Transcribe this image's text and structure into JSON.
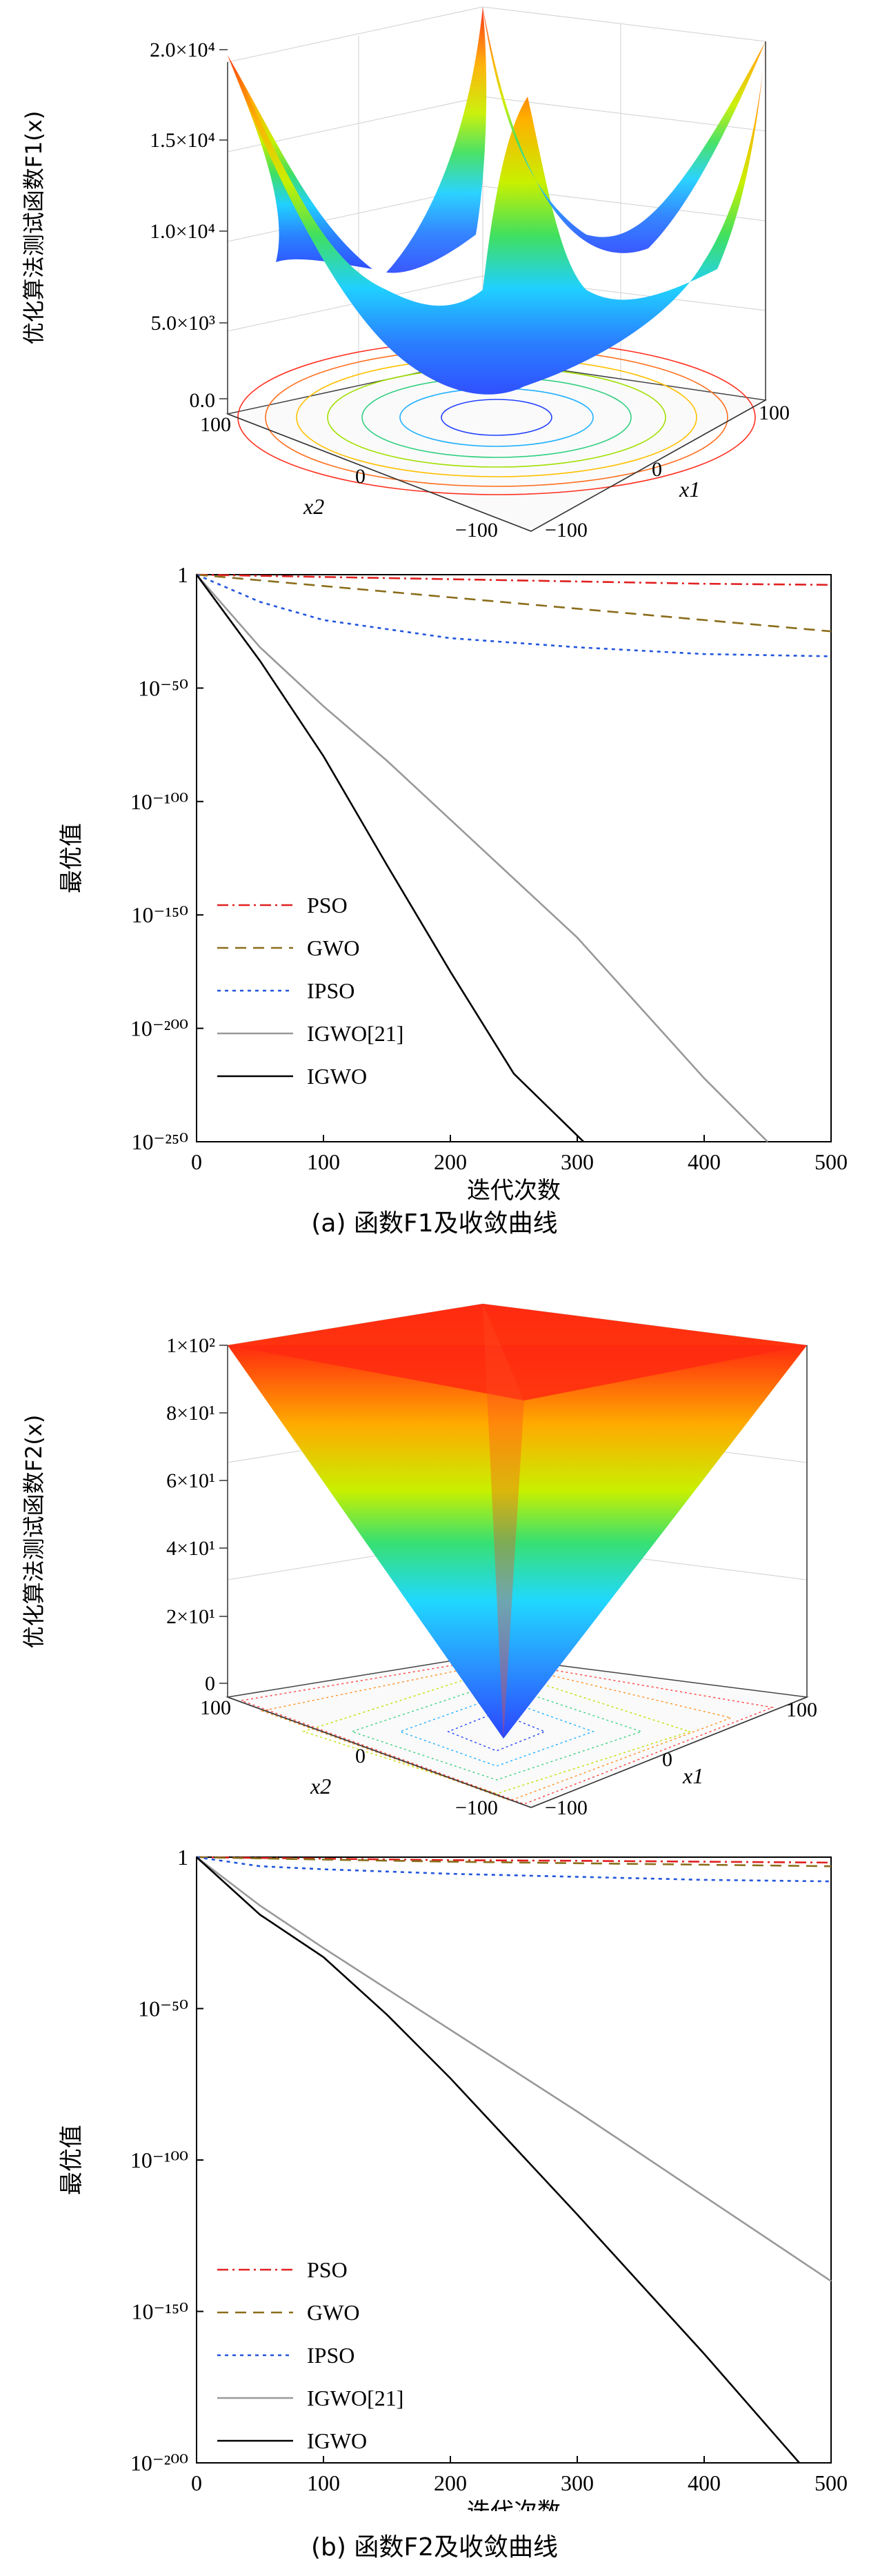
{
  "panels": [
    {
      "caption": "(a)  函数F1及收敛曲线",
      "surface": {
        "zlabel": "优化算法测试函数F1(x)",
        "zticks": [
          "0.0",
          "5.0×10³",
          "1.0×10⁴",
          "1.5×10⁴",
          "2.0×10⁴"
        ],
        "x1label": "x1",
        "x2label": "x2",
        "x1ticks": [
          "100",
          "0",
          "−100"
        ],
        "x2ticks": [
          "100",
          "0",
          "−100"
        ]
      }
    },
    {
      "caption": "(b) 函数F2及收敛曲线",
      "surface": {
        "zlabel": "优化算法测试函数F2(x)",
        "zticks": [
          "0",
          "2×10¹",
          "4×10¹",
          "6×10¹",
          "8×10¹",
          "1×10²"
        ],
        "x1label": "x1",
        "x2label": "x2",
        "x1ticks": [
          "100",
          "0",
          "−100"
        ],
        "x2ticks": [
          "100",
          "0",
          "−100"
        ]
      }
    }
  ],
  "chart_data": [
    {
      "type": "surface",
      "function": "F1",
      "zlabel": "优化算法测试函数F1(x)",
      "xlabel": "x1",
      "ylabel": "x2",
      "xlim": [
        -100,
        100
      ],
      "ylim": [
        -100,
        100
      ],
      "zlim": [
        0,
        20000
      ],
      "zticks": [
        0,
        5000,
        10000,
        15000,
        20000
      ],
      "contours_on_base": true,
      "colormap": [
        "#3050ff",
        "#20d0ff",
        "#40e060",
        "#c8f000",
        "#ffb000",
        "#ff2a10"
      ]
    },
    {
      "type": "line",
      "xlabel": "迭代次数",
      "ylabel": "最优值",
      "yscale": "log",
      "xlim": [
        0,
        500
      ],
      "ylim_exp": [
        -250,
        0
      ],
      "xticks": [
        0,
        100,
        200,
        300,
        400,
        500
      ],
      "ytick_labels": [
        "1",
        "10⁻⁵⁰",
        "10⁻¹⁰⁰",
        "10⁻¹⁵⁰",
        "10⁻²⁰⁰",
        "10⁻²⁵⁰"
      ],
      "legend_position": "bottom-left",
      "series": [
        {
          "name": "PSO",
          "color": "#e02020",
          "dash": "dashdot",
          "x": [
            0,
            100,
            200,
            300,
            400,
            500
          ],
          "log10_y": [
            0,
            -1,
            -2,
            -3,
            -4,
            -4.5
          ]
        },
        {
          "name": "GWO",
          "color": "#8a6d1a",
          "dash": "dashed",
          "x": [
            0,
            100,
            200,
            300,
            400,
            500
          ],
          "log10_y": [
            0,
            -5,
            -10,
            -15,
            -20,
            -25
          ]
        },
        {
          "name": "IPSO",
          "color": "#2255dd",
          "dash": "dotted",
          "x": [
            0,
            50,
            100,
            200,
            300,
            400,
            500
          ],
          "log10_y": [
            0,
            -12,
            -20,
            -28,
            -32,
            -35,
            -36
          ]
        },
        {
          "name": "IGWO[21]",
          "color": "#999999",
          "dash": "solid",
          "x": [
            0,
            50,
            100,
            150,
            200,
            300,
            400,
            450
          ],
          "log10_y": [
            0,
            -32,
            -58,
            -82,
            -108,
            -160,
            -222,
            -250
          ]
        },
        {
          "name": "IGWO",
          "color": "#000000",
          "dash": "solid",
          "x": [
            0,
            50,
            100,
            150,
            200,
            250,
            305
          ],
          "log10_y": [
            0,
            -38,
            -80,
            -128,
            -175,
            -220,
            -250
          ]
        }
      ]
    },
    {
      "type": "surface",
      "function": "F2",
      "zlabel": "优化算法测试函数F2(x)",
      "xlabel": "x1",
      "ylabel": "x2",
      "xlim": [
        -100,
        100
      ],
      "ylim": [
        -100,
        100
      ],
      "zlim": [
        0,
        100
      ],
      "zticks": [
        0,
        20,
        40,
        60,
        80,
        100
      ],
      "contours_on_base": true,
      "colormap": [
        "#3050ff",
        "#20d0ff",
        "#40e060",
        "#c8f000",
        "#ffb000",
        "#ff2a10"
      ]
    },
    {
      "type": "line",
      "xlabel": "迭代次数",
      "ylabel": "最优值",
      "yscale": "log",
      "xlim": [
        0,
        500
      ],
      "ylim_exp": [
        -200,
        0
      ],
      "xticks": [
        0,
        100,
        200,
        300,
        400,
        500
      ],
      "ytick_labels": [
        "1",
        "10⁻⁵⁰",
        "10⁻¹⁰⁰",
        "10⁻¹⁵⁰",
        "10⁻²⁰⁰"
      ],
      "legend_position": "bottom-left",
      "series": [
        {
          "name": "PSO",
          "color": "#e02020",
          "dash": "dashdot",
          "x": [
            0,
            100,
            200,
            300,
            400,
            500
          ],
          "log10_y": [
            0,
            -0.5,
            -1,
            -1.2,
            -1.5,
            -1.8
          ]
        },
        {
          "name": "GWO",
          "color": "#8a6d1a",
          "dash": "dashed",
          "x": [
            0,
            100,
            200,
            300,
            400,
            500
          ],
          "log10_y": [
            0,
            -0.8,
            -1.5,
            -2,
            -2.5,
            -3
          ]
        },
        {
          "name": "IPSO",
          "color": "#2255dd",
          "dash": "dotted",
          "x": [
            0,
            50,
            100,
            200,
            300,
            400,
            500
          ],
          "log10_y": [
            0,
            -3,
            -4,
            -5.5,
            -6.5,
            -7.5,
            -8
          ]
        },
        {
          "name": "IGWO[21]",
          "color": "#999999",
          "dash": "solid",
          "x": [
            0,
            50,
            100,
            200,
            300,
            400,
            500
          ],
          "log10_y": [
            0,
            -16,
            -30,
            -57,
            -84,
            -112,
            -140
          ]
        },
        {
          "name": "IGWO",
          "color": "#000000",
          "dash": "solid",
          "x": [
            0,
            50,
            100,
            150,
            200,
            300,
            400,
            475
          ],
          "log10_y": [
            0,
            -19,
            -33,
            -52,
            -73,
            -118,
            -164,
            -200
          ]
        }
      ]
    }
  ],
  "x_axis_label": "迭代次数",
  "y_axis_label": "最优值"
}
